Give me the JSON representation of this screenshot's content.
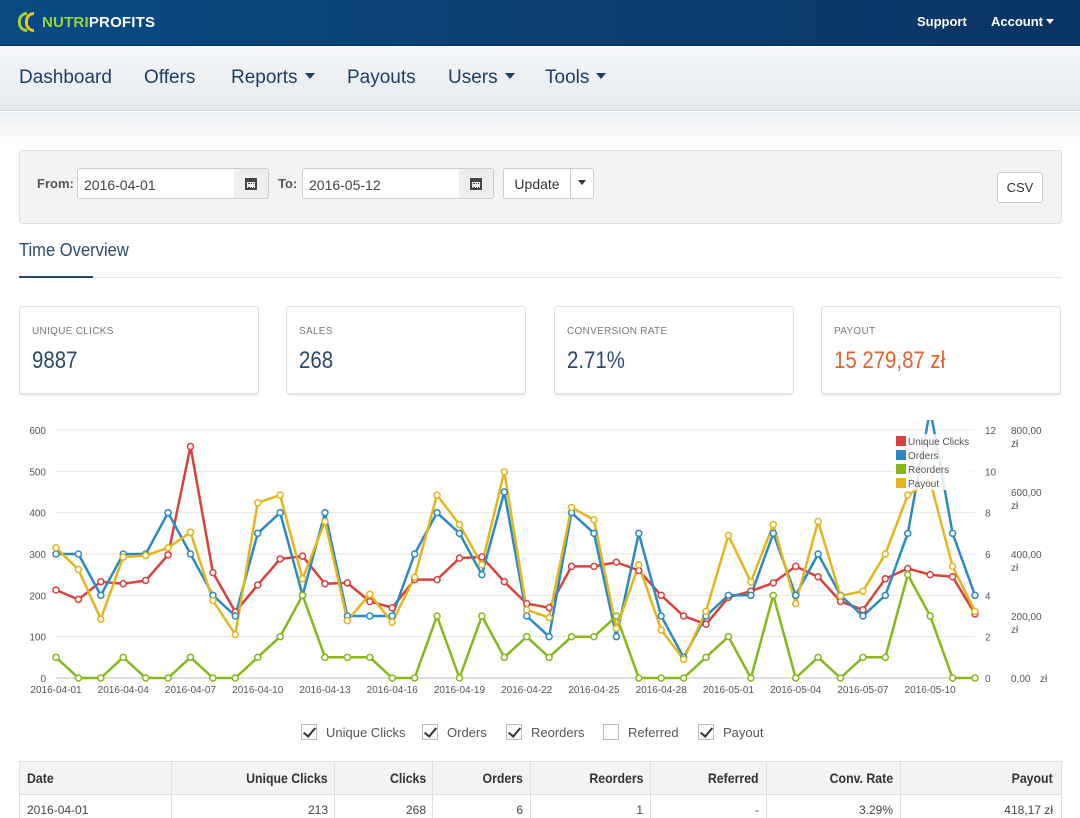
{
  "header": {
    "brand_a": "NUTRI",
    "brand_b": "PROFITS",
    "support": "Support",
    "account": "Account"
  },
  "nav": {
    "dashboard": "Dashboard",
    "offers": "Offers",
    "reports": "Reports",
    "payouts": "Payouts",
    "users": "Users",
    "tools": "Tools"
  },
  "filter": {
    "from_label": "From:",
    "from_value": "2016-04-01",
    "to_label": "To:",
    "to_value": "2016-05-12",
    "update": "Update",
    "csv": "CSV"
  },
  "section_title": "Time Overview",
  "stats": {
    "clicks_label": "UNIQUE CLICKS",
    "clicks_value": "9887",
    "sales_label": "SALES",
    "sales_value": "268",
    "conv_label": "CONVERSION RATE",
    "conv_value": "2.71%",
    "payout_label": "PAYOUT",
    "payout_value": "15 279,87 zł"
  },
  "chart_data": {
    "type": "line",
    "x": [
      "2016-04-01",
      "2016-04-02",
      "2016-04-03",
      "2016-04-04",
      "2016-04-05",
      "2016-04-06",
      "2016-04-07",
      "2016-04-08",
      "2016-04-09",
      "2016-04-10",
      "2016-04-11",
      "2016-04-12",
      "2016-04-13",
      "2016-04-14",
      "2016-04-15",
      "2016-04-16",
      "2016-04-17",
      "2016-04-18",
      "2016-04-19",
      "2016-04-20",
      "2016-04-21",
      "2016-04-22",
      "2016-04-23",
      "2016-04-24",
      "2016-04-25",
      "2016-04-26",
      "2016-04-27",
      "2016-04-28",
      "2016-04-29",
      "2016-04-30",
      "2016-05-01",
      "2016-05-02",
      "2016-05-03",
      "2016-05-04",
      "2016-05-05",
      "2016-05-06",
      "2016-05-07",
      "2016-05-08",
      "2016-05-09",
      "2016-05-10",
      "2016-05-11",
      "2016-05-12"
    ],
    "xticks": [
      "2016-04-01",
      "2016-04-04",
      "2016-04-07",
      "2016-04-10",
      "2016-04-13",
      "2016-04-16",
      "2016-04-19",
      "2016-04-22",
      "2016-04-25",
      "2016-04-28",
      "2016-05-01",
      "2016-05-04",
      "2016-05-07",
      "2016-05-10"
    ],
    "y_left_ticks": [
      "0",
      "100",
      "200",
      "300",
      "400",
      "500",
      "600"
    ],
    "y_mid_ticks": [
      "0",
      "2",
      "4",
      "6",
      "8",
      "10",
      "12"
    ],
    "y_right_ticks": [
      "0,00 zł",
      "200,00 zł",
      "400,00 zł",
      "600,00 zł",
      "800,00 zł"
    ],
    "ylim_left": [
      0,
      600
    ],
    "ylim_mid": [
      0,
      12
    ],
    "ylim_right": [
      0,
      800
    ],
    "grid": true,
    "legend_position": "top-right",
    "series": [
      {
        "name": "Unique Clicks",
        "color": "#d9413d",
        "axis": "left",
        "values": [
          213,
          190,
          233,
          228,
          236,
          298,
          560,
          255,
          160,
          225,
          288,
          295,
          228,
          230,
          185,
          170,
          238,
          238,
          290,
          293,
          233,
          180,
          170,
          270,
          270,
          280,
          260,
          200,
          150,
          130,
          195,
          210,
          230,
          270,
          245,
          185,
          165,
          240,
          265,
          250,
          245,
          155
        ]
      },
      {
        "name": "Orders",
        "color": "#2a8bc2",
        "axis": "mid",
        "values": [
          6,
          6,
          4,
          6,
          6,
          8,
          6,
          4,
          3,
          7,
          8,
          4,
          8,
          3,
          3,
          3,
          6,
          8,
          7,
          5,
          9,
          3,
          2,
          8,
          7,
          2,
          7,
          3,
          1,
          3,
          4,
          4,
          7,
          4,
          6,
          4,
          3,
          4,
          7,
          13,
          7,
          4
        ]
      },
      {
        "name": "Reorders",
        "color": "#86b81a",
        "axis": "mid",
        "values": [
          1,
          0,
          0,
          1,
          0,
          0,
          1,
          0,
          0,
          1,
          2,
          4,
          1,
          1,
          1,
          0,
          0,
          3,
          0,
          3,
          1,
          2,
          1,
          2,
          2,
          3,
          0,
          0,
          0,
          1,
          2,
          0,
          4,
          0,
          1,
          0,
          1,
          1,
          5,
          3,
          0,
          0
        ]
      },
      {
        "name": "Payout",
        "color": "#e4b51c",
        "axis": "right",
        "values": [
          420,
          350,
          190,
          390,
          395,
          420,
          470,
          250,
          140,
          565,
          590,
          320,
          505,
          185,
          270,
          180,
          325,
          590,
          495,
          365,
          665,
          220,
          195,
          550,
          510,
          160,
          365,
          155,
          60,
          215,
          460,
          310,
          495,
          240,
          505,
          265,
          280,
          400,
          590,
          635,
          360,
          215
        ]
      }
    ]
  },
  "checks": [
    {
      "label": "Unique Clicks",
      "checked": true
    },
    {
      "label": "Orders",
      "checked": true
    },
    {
      "label": "Reorders",
      "checked": true
    },
    {
      "label": "Referred",
      "checked": false
    },
    {
      "label": "Payout",
      "checked": true
    }
  ],
  "table": {
    "headers": [
      "Date",
      "Unique Clicks",
      "Clicks",
      "Orders",
      "Reorders",
      "Referred",
      "Conv. Rate",
      "Payout"
    ],
    "rows": [
      [
        "2016-04-01",
        "213",
        "268",
        "6",
        "1",
        "-",
        "3.29%",
        "418,17 zł"
      ]
    ]
  }
}
